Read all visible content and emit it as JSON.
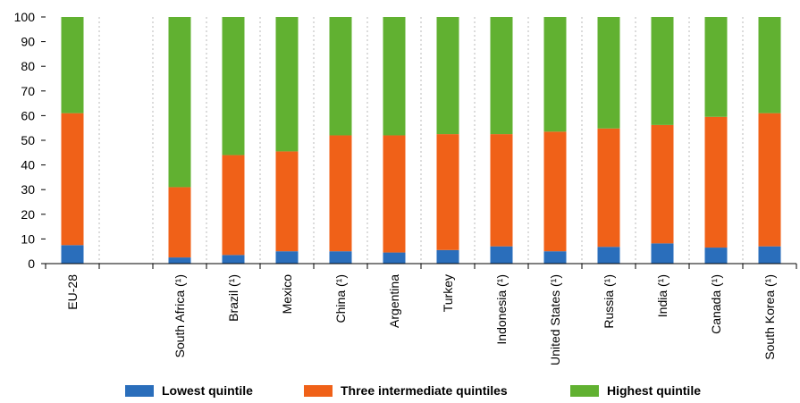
{
  "chart_data": {
    "type": "bar",
    "stacked": true,
    "title": "",
    "xlabel": "",
    "ylabel": "",
    "ylim": [
      0,
      100
    ],
    "yticks": [
      0,
      10,
      20,
      30,
      40,
      50,
      60,
      70,
      80,
      90,
      100
    ],
    "grid": "vertical dashed between categories",
    "categories": [
      "EU-28",
      "",
      "South Africa (¹)",
      "Brazil (¹)",
      "Mexico",
      "China (¹)",
      "Argentina",
      "Turkey",
      "Indonesia (¹)",
      "United States (¹)",
      "Russia (¹)",
      "India (¹)",
      "Canada (¹)",
      "South Korea (¹)"
    ],
    "series": [
      {
        "name": "Lowest quintile",
        "color": "#2a6ebb",
        "values": [
          7.5,
          null,
          2.5,
          3.5,
          5.0,
          5.0,
          4.5,
          5.5,
          7.0,
          5.0,
          6.8,
          8.2,
          6.5,
          7.0
        ]
      },
      {
        "name": "Three intermediate quintiles",
        "color": "#f06118",
        "values": [
          53.5,
          null,
          28.5,
          40.5,
          40.5,
          47.0,
          47.5,
          47.0,
          45.5,
          48.5,
          48.0,
          48.0,
          53.0,
          54.0
        ]
      },
      {
        "name": "Highest quintile",
        "color": "#61b131",
        "values": [
          39.0,
          null,
          69.0,
          56.0,
          54.5,
          48.0,
          48.0,
          47.5,
          47.5,
          46.5,
          45.2,
          43.8,
          40.5,
          39.0
        ]
      }
    ],
    "legend_position": "bottom"
  }
}
